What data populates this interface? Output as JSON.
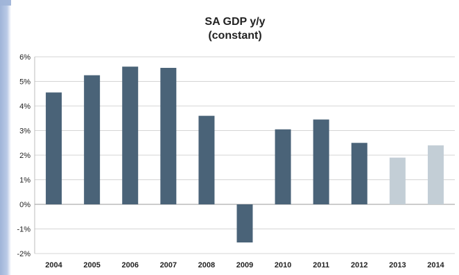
{
  "chart_data": {
    "type": "bar",
    "title_line1": "SA GDP y/y",
    "title_line2": "(constant)",
    "categories": [
      "2004",
      "2005",
      "2006",
      "2007",
      "2008",
      "2009",
      "2010",
      "2011",
      "2012",
      "2013",
      "2014"
    ],
    "values": [
      4.55,
      5.25,
      5.6,
      5.55,
      3.6,
      -1.55,
      3.05,
      3.45,
      2.5,
      1.9,
      2.4
    ],
    "bar_colors": [
      "#4a6378",
      "#4a6378",
      "#4a6378",
      "#4a6378",
      "#4a6378",
      "#4a6378",
      "#4a6378",
      "#4a6378",
      "#4a6378",
      "#c3ced6",
      "#c3ced6"
    ],
    "ylim": [
      -2,
      6
    ],
    "yticks": [
      -2,
      -1,
      0,
      1,
      2,
      3,
      4,
      5,
      6
    ],
    "ytick_labels": [
      "-2%",
      "-1%",
      "0%",
      "1%",
      "2%",
      "3%",
      "4%",
      "5%",
      "6%"
    ],
    "xlabel": "",
    "ylabel": "",
    "grid": true,
    "legend": false
  }
}
